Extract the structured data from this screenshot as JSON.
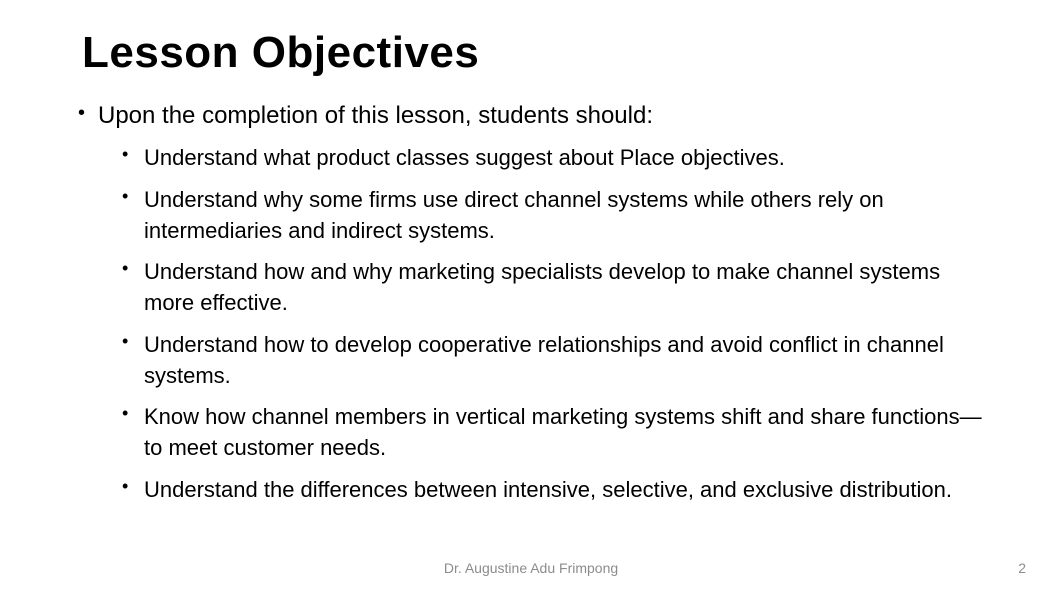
{
  "title": "Lesson Objectives",
  "intro": "Upon the completion of this lesson, students should:",
  "objectives": [
    "Understand what product classes suggest about Place objectives.",
    "Understand why some firms use direct channel systems while others rely on intermediaries and indirect systems.",
    "Understand how and why marketing specialists develop to make channel systems more effective.",
    "Understand how to develop cooperative relationships and avoid conflict in channel systems.",
    "Know how channel members in vertical marketing systems shift and share functions—to meet customer needs.",
    "Understand the differences between intensive, selective, and exclusive distribution."
  ],
  "footer_author": "Dr. Augustine Adu Frimpong",
  "page_number": "2",
  "style": {
    "background_color": "#ffffff",
    "title_fontsize_pt": 33,
    "title_fontweight": 900,
    "body_fontsize_pt": 18,
    "sub_fontsize_pt": 16.5,
    "footer_fontsize_pt": 10.5,
    "text_color": "#000000",
    "footer_color": "#8c8c8c",
    "title_font": "Verdana",
    "body_font": "Segoe UI"
  }
}
